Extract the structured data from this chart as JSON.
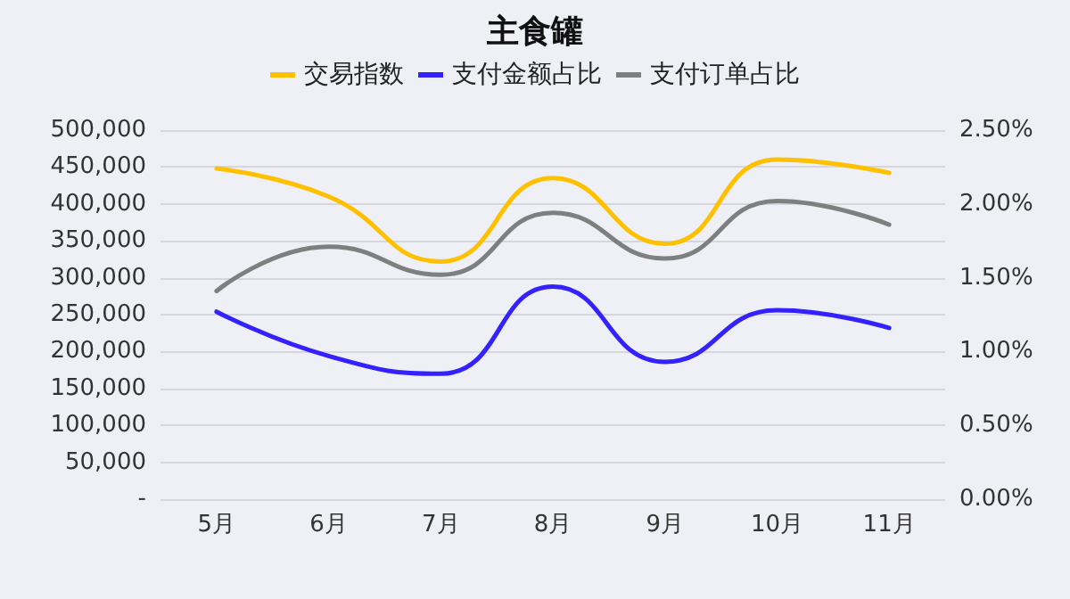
{
  "chart_data": {
    "type": "line",
    "title": "主食罐",
    "categories": [
      "5月",
      "6月",
      "7月",
      "8月",
      "9月",
      "10月",
      "11月"
    ],
    "series": [
      {
        "name": "交易指数",
        "color": "#ffc000",
        "values": [
          448000,
          410000,
          322000,
          435000,
          346000,
          460000,
          442000
        ]
      },
      {
        "name": "支付金额占比",
        "color": "#3322ff",
        "axis": "y2",
        "values": [
          1.27,
          0.97,
          0.85,
          1.44,
          0.93,
          1.28,
          1.16
        ]
      },
      {
        "name": "支付订单占比",
        "color": "#7f7f7f",
        "axis": "y2",
        "values": [
          1.41,
          1.71,
          1.52,
          1.94,
          1.63,
          2.02,
          1.86
        ]
      }
    ],
    "ylim": [
      0,
      500000
    ],
    "yticks": [
      {
        "value": 0,
        "label": "-"
      },
      {
        "value": 50000,
        "label": "50,000"
      },
      {
        "value": 100000,
        "label": "100,000"
      },
      {
        "value": 150000,
        "label": "150,000"
      },
      {
        "value": 200000,
        "label": "200,000"
      },
      {
        "value": 250000,
        "label": "250,000"
      },
      {
        "value": 300000,
        "label": "300,000"
      },
      {
        "value": 350000,
        "label": "350,000"
      },
      {
        "value": 400000,
        "label": "400,000"
      },
      {
        "value": 450000,
        "label": "450,000"
      },
      {
        "value": 500000,
        "label": "500,000"
      }
    ],
    "y2lim": [
      0,
      2.5
    ],
    "y2ticks": [
      {
        "value": 0,
        "label": "0.00%"
      },
      {
        "value": 0.5,
        "label": "0.50%"
      },
      {
        "value": 1,
        "label": "1.00%"
      },
      {
        "value": 1.5,
        "label": "1.50%"
      },
      {
        "value": 2,
        "label": "2.00%"
      },
      {
        "value": 2.5,
        "label": "2.50%"
      }
    ],
    "grid": "y",
    "legend": "top",
    "marker": "none",
    "line_style": "solid"
  }
}
